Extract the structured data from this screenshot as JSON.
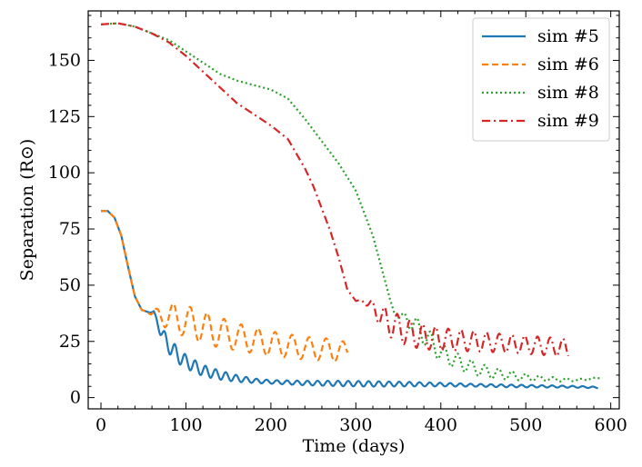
{
  "chart_data": {
    "type": "line",
    "title": "",
    "xlabel": "Time (days)",
    "ylabel": "Separation (R⊙)",
    "xlim": [
      -15,
      610
    ],
    "ylim": [
      -5,
      172
    ],
    "xticks": [
      0,
      100,
      200,
      300,
      400,
      500,
      600
    ],
    "yticks": [
      0,
      25,
      50,
      75,
      100,
      125,
      150
    ],
    "grid": false,
    "legend_position": "top-right",
    "series": [
      {
        "name": "sim #5",
        "color": "#1f77b4",
        "dash": "solid",
        "shape": "oscillating",
        "x": [
          0,
          8,
          16,
          24,
          32,
          40,
          48,
          56,
          62,
          70,
          78,
          90,
          100,
          120,
          140,
          160,
          180,
          200,
          240,
          280,
          320,
          360,
          400,
          440,
          480,
          520,
          560,
          585
        ],
        "y": [
          83,
          83,
          80,
          72,
          58,
          45,
          39,
          38,
          38,
          30,
          24,
          19,
          16,
          12,
          10,
          8.5,
          7.5,
          7,
          6.5,
          6.3,
          6.1,
          6,
          5.8,
          5.5,
          5.2,
          5,
          4.8,
          4.5
        ],
        "amp": [
          0,
          0,
          0,
          0,
          0,
          0,
          0,
          0,
          0.5,
          2.5,
          3.5,
          3.5,
          3,
          2.5,
          2,
          1.5,
          1,
          0.8,
          1,
          1.2,
          1.2,
          1,
          0.8,
          0.6,
          0.6,
          0.5,
          0.4,
          0.3
        ],
        "period": 12
      },
      {
        "name": "sim #6",
        "color": "#ff7f0e",
        "dash": "dashed",
        "shape": "oscillating",
        "x": [
          0,
          8,
          16,
          24,
          32,
          40,
          48,
          55,
          62,
          80,
          100,
          130,
          160,
          200,
          240,
          280,
          290
        ],
        "y": [
          83,
          83,
          80,
          72,
          58,
          45,
          39,
          38,
          37,
          36,
          34,
          30,
          27,
          24,
          22,
          21,
          20
        ],
        "amp": [
          0,
          0,
          0,
          0,
          0,
          0,
          0,
          0,
          2,
          6,
          7,
          7,
          6,
          5.5,
          5,
          5,
          4
        ],
        "period": 20
      },
      {
        "name": "sim #8",
        "color": "#2ca02c",
        "dash": "dotted",
        "shape": "oscillating",
        "x": [
          0,
          20,
          40,
          60,
          80,
          100,
          120,
          140,
          160,
          180,
          200,
          220,
          240,
          260,
          280,
          300,
          320,
          330,
          340,
          345,
          350,
          360,
          370,
          380,
          390,
          400,
          420,
          440,
          460,
          480,
          500,
          520,
          540,
          560,
          580,
          590
        ],
        "y": [
          166,
          166.5,
          165,
          162,
          159,
          154,
          149,
          144,
          141,
          139,
          137,
          133,
          124,
          114,
          104,
          92,
          72,
          58,
          44,
          38,
          36,
          35,
          32,
          28,
          24,
          20,
          16,
          13,
          11,
          10,
          9,
          8.5,
          8,
          7.8,
          8.5,
          9
        ],
        "amp": [
          0,
          0,
          0,
          0,
          0,
          0,
          0,
          0,
          0,
          0,
          0,
          0,
          0,
          0,
          0,
          0,
          0,
          0,
          0,
          0,
          1,
          3,
          4,
          4.5,
          4.5,
          4,
          3.5,
          3,
          2.5,
          2,
          1.5,
          1,
          0.8,
          0.5,
          0.3,
          0.2
        ],
        "period": 16
      },
      {
        "name": "sim #9",
        "color": "#d62728",
        "dash": "dashdot",
        "shape": "oscillating",
        "x": [
          0,
          20,
          40,
          60,
          80,
          100,
          120,
          140,
          160,
          180,
          200,
          220,
          240,
          250,
          260,
          270,
          280,
          290,
          300,
          310,
          320,
          330,
          340,
          360,
          380,
          400,
          440,
          480,
          520,
          550
        ],
        "y": [
          166,
          166.5,
          165,
          162,
          158,
          152,
          145,
          138,
          131,
          126,
          121,
          115,
          102,
          94,
          84,
          74,
          62,
          48,
          43,
          43,
          40,
          36,
          33,
          29,
          27,
          26,
          25,
          24,
          23,
          22
        ],
        "amp": [
          0,
          0,
          0,
          0,
          0,
          0,
          0,
          0,
          0,
          0,
          0,
          0,
          0,
          0,
          0,
          0,
          0,
          0,
          0,
          1,
          3,
          5,
          6,
          6,
          5.5,
          5,
          4.5,
          4,
          4,
          4
        ],
        "period": 15
      }
    ]
  }
}
